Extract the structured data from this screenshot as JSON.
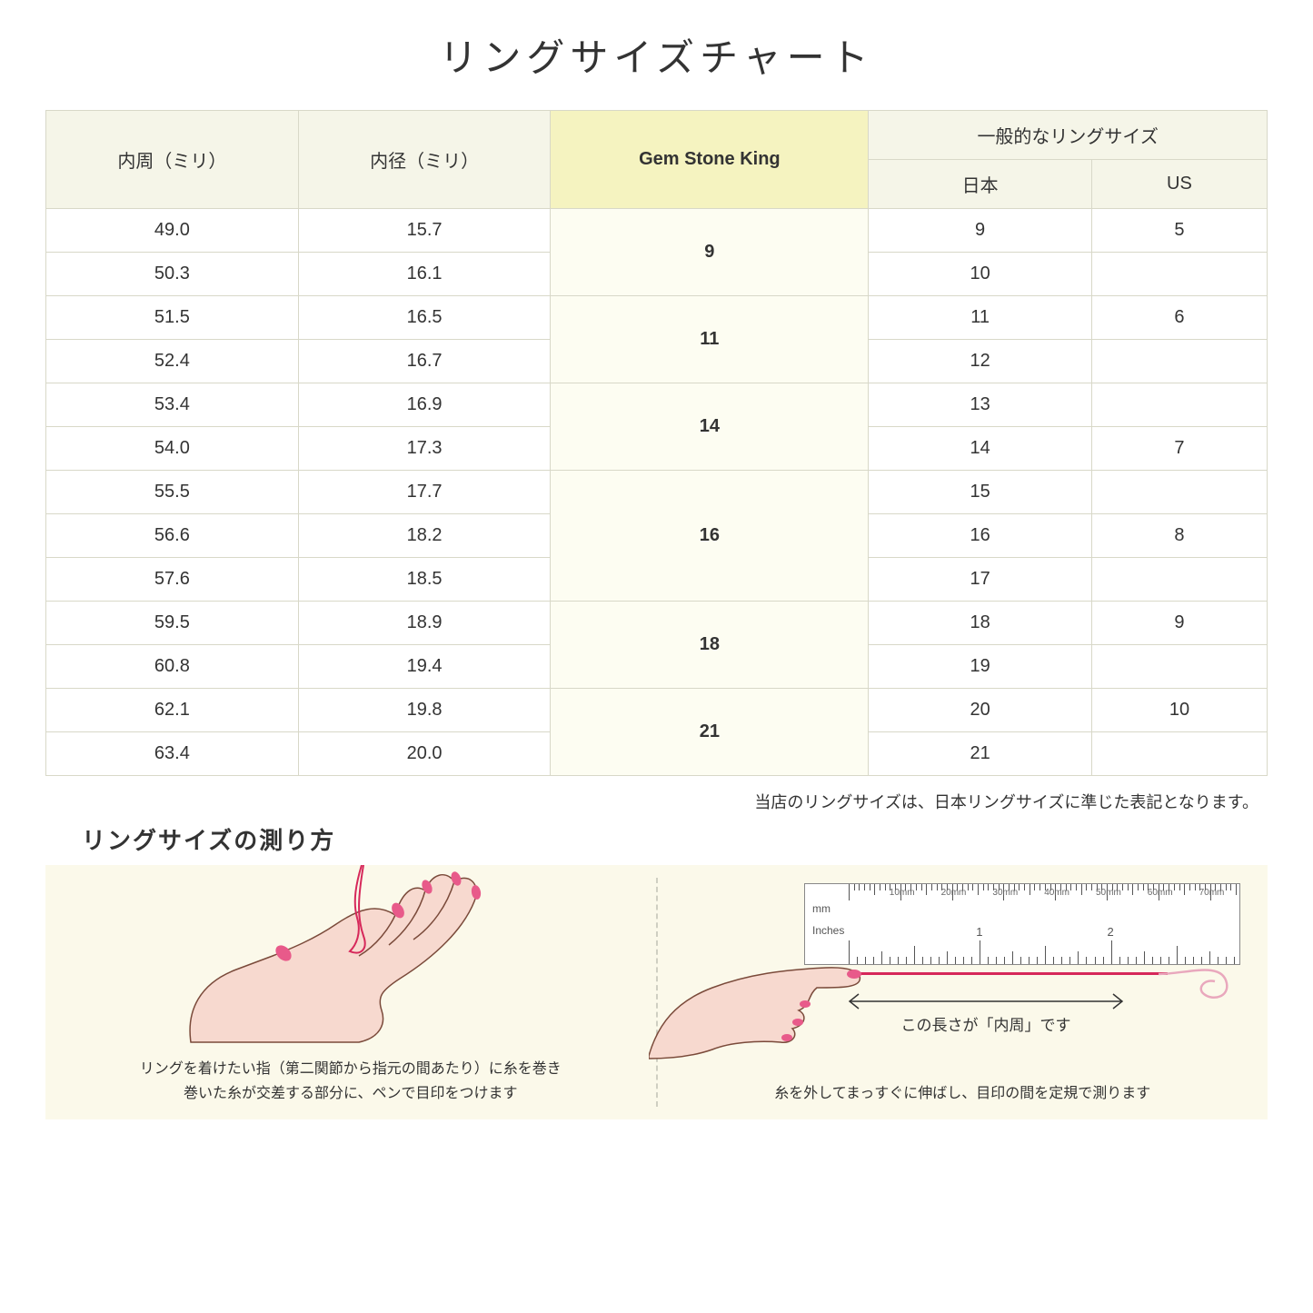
{
  "title": "リングサイズチャート",
  "table": {
    "headers": {
      "col1": "内周（ミリ）",
      "col2": "内径（ミリ）",
      "col3": "Gem Stone King",
      "col4_group": "一般的なリングサイズ",
      "col4a": "日本",
      "col4b": "US"
    },
    "groups": [
      {
        "gsk": "9",
        "rows": [
          {
            "circ": "49.0",
            "dia": "15.7",
            "jp": "9",
            "us": "5"
          },
          {
            "circ": "50.3",
            "dia": "16.1",
            "jp": "10",
            "us": ""
          }
        ]
      },
      {
        "gsk": "11",
        "rows": [
          {
            "circ": "51.5",
            "dia": "16.5",
            "jp": "11",
            "us": "6"
          },
          {
            "circ": "52.4",
            "dia": "16.7",
            "jp": "12",
            "us": ""
          }
        ]
      },
      {
        "gsk": "14",
        "rows": [
          {
            "circ": "53.4",
            "dia": "16.9",
            "jp": "13",
            "us": ""
          },
          {
            "circ": "54.0",
            "dia": "17.3",
            "jp": "14",
            "us": "7"
          }
        ]
      },
      {
        "gsk": "16",
        "rows": [
          {
            "circ": "55.5",
            "dia": "17.7",
            "jp": "15",
            "us": ""
          },
          {
            "circ": "56.6",
            "dia": "18.2",
            "jp": "16",
            "us": "8"
          },
          {
            "circ": "57.6",
            "dia": "18.5",
            "jp": "17",
            "us": ""
          }
        ]
      },
      {
        "gsk": "18",
        "rows": [
          {
            "circ": "59.5",
            "dia": "18.9",
            "jp": "18",
            "us": "9"
          },
          {
            "circ": "60.8",
            "dia": "19.4",
            "jp": "19",
            "us": ""
          }
        ]
      },
      {
        "gsk": "21",
        "rows": [
          {
            "circ": "62.1",
            "dia": "19.8",
            "jp": "20",
            "us": "10"
          },
          {
            "circ": "63.4",
            "dia": "20.0",
            "jp": "21",
            "us": ""
          }
        ]
      }
    ]
  },
  "note": "当店のリングサイズは、日本リングサイズに準じた表記となります。",
  "howto": {
    "title": "リングサイズの測り方",
    "left_caption_l1": "リングを着けたい指（第二関節から指元の間あたり）に糸を巻き",
    "left_caption_l2": "巻いた糸が交差する部分に、ペンで目印をつけます",
    "right_caption": "糸を外してまっすぐに伸ばし、目印の間を定規で測ります",
    "arrow_label": "この長さが「内周」です",
    "ruler_mm": "mm",
    "ruler_in": "Inches",
    "ruler_mm_marks": [
      "10mm",
      "20mm",
      "30mm",
      "40mm",
      "50mm",
      "60mm",
      "70mm"
    ],
    "ruler_in_marks": [
      "1",
      "2"
    ]
  },
  "colors": {
    "header_bg": "#f5f5e8",
    "highlight_bg": "#f5f3c0",
    "gsk_cell_bg": "#fdfdf2",
    "border": "#d8d8c8",
    "howto_bg": "#fbf9ea",
    "hand_fill": "#f7d9cf",
    "hand_stroke": "#7a4a3a",
    "nail": "#e85a8a",
    "thread": "#d6285a"
  }
}
